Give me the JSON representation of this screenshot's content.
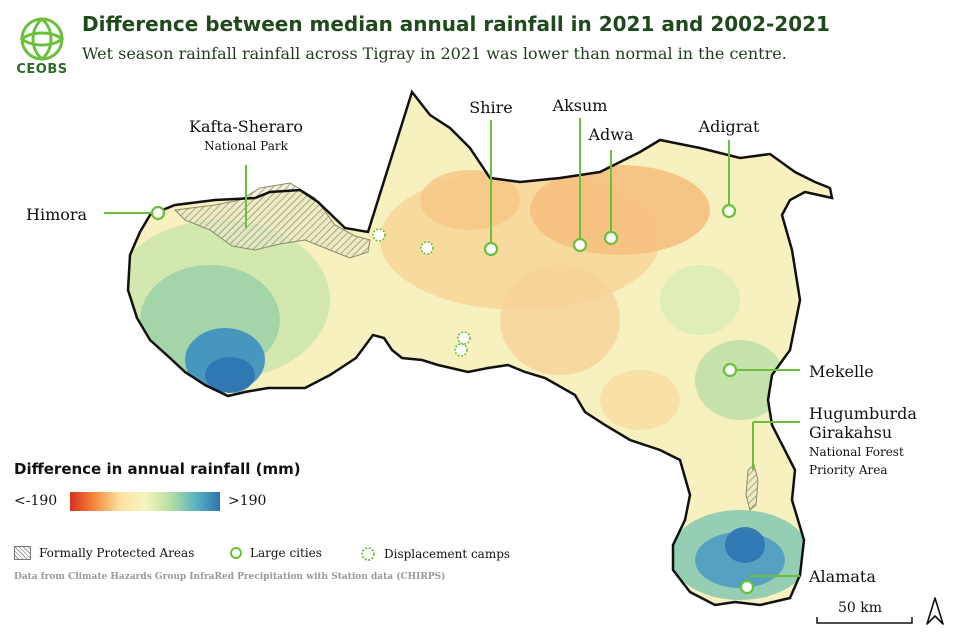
{
  "header": {
    "logo_text": "CEOBS",
    "title": "Difference between median annual rainfall in 2021 and 2002-2021",
    "subtitle": "Wet season rainfall rainfall across Tigray in 2021 was lower than normal in the centre."
  },
  "legend": {
    "title": "Difference in annual rainfall (mm)",
    "min_label": "<-190",
    "max_label": ">190",
    "scale_min": -190,
    "scale_max": 190,
    "colors": [
      "#d7301f",
      "#f58a3d",
      "#fde2a0",
      "#f7f5bf",
      "#b8dfa4",
      "#5cb4c0",
      "#2b74b2"
    ]
  },
  "key": {
    "protected_areas": "Formally Protected Areas",
    "large_cities": "Large cities",
    "displacement_camps": "Displacement camps"
  },
  "source": "Data from Climate Hazards Group InfraRed Precipitation with Station data (CHIRPS)",
  "scale_bar": "50 km",
  "places": {
    "himora": "Himora",
    "shire": "Shire",
    "aksum": "Aksum",
    "adwa": "Adwa",
    "adigrat": "Adigrat",
    "mekelle": "Mekelle",
    "alamata": "Alamata",
    "kafta_line1": "Kafta-Sheraro",
    "kafta_line2": "National Park",
    "hugu_line1": "Hugumburda",
    "hugu_line2": "Girakahsu",
    "hugu_line3": "National Forest",
    "hugu_line4": "Priority Area"
  },
  "colors": {
    "accent_green": "#6abf3b",
    "title_green": "#1f4a1c"
  }
}
